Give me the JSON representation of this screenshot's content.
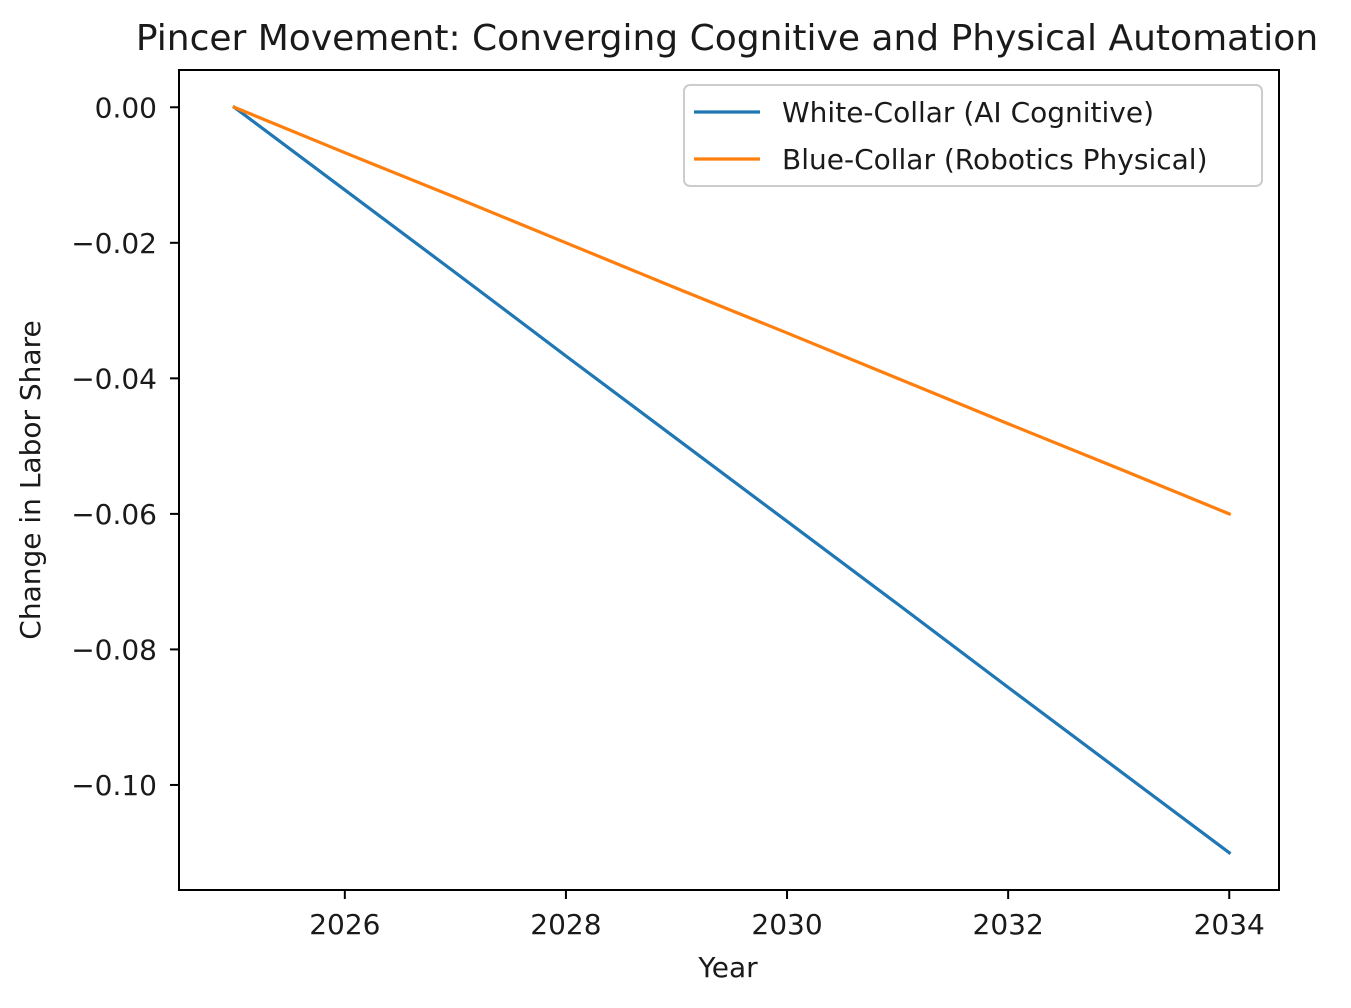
{
  "chart_data": {
    "type": "line",
    "title": "Pincer Movement: Converging Cognitive and Physical Automation",
    "xlabel": "Year",
    "ylabel": "Change in Labor Share",
    "x": [
      2025,
      2026,
      2027,
      2028,
      2029,
      2030,
      2031,
      2032,
      2033,
      2034
    ],
    "xlim": [
      2024.5,
      2034.45
    ],
    "ylim": [
      -0.1155,
      0.0055
    ],
    "x_ticks": [
      2026,
      2028,
      2030,
      2032,
      2034
    ],
    "x_tick_labels": [
      "2026",
      "2028",
      "2030",
      "2032",
      "2034"
    ],
    "y_ticks": [
      0.0,
      -0.02,
      -0.04,
      -0.06,
      -0.08,
      -0.1
    ],
    "y_tick_labels": [
      "0.00",
      "−0.02",
      "−0.04",
      "−0.06",
      "−0.08",
      "−0.10"
    ],
    "series": [
      {
        "name": "White-Collar (AI Cognitive)",
        "color": "#1f77b4",
        "values": [
          0.0,
          -0.0122,
          -0.0244,
          -0.0367,
          -0.0489,
          -0.0611,
          -0.0733,
          -0.0856,
          -0.0978,
          -0.11
        ]
      },
      {
        "name": "Blue-Collar (Robotics Physical)",
        "color": "#ff7f0e",
        "values": [
          0.0,
          -0.0067,
          -0.0133,
          -0.02,
          -0.0267,
          -0.0333,
          -0.04,
          -0.0467,
          -0.0533,
          -0.06
        ]
      }
    ],
    "legend_position": "upper right",
    "grid": false
  }
}
